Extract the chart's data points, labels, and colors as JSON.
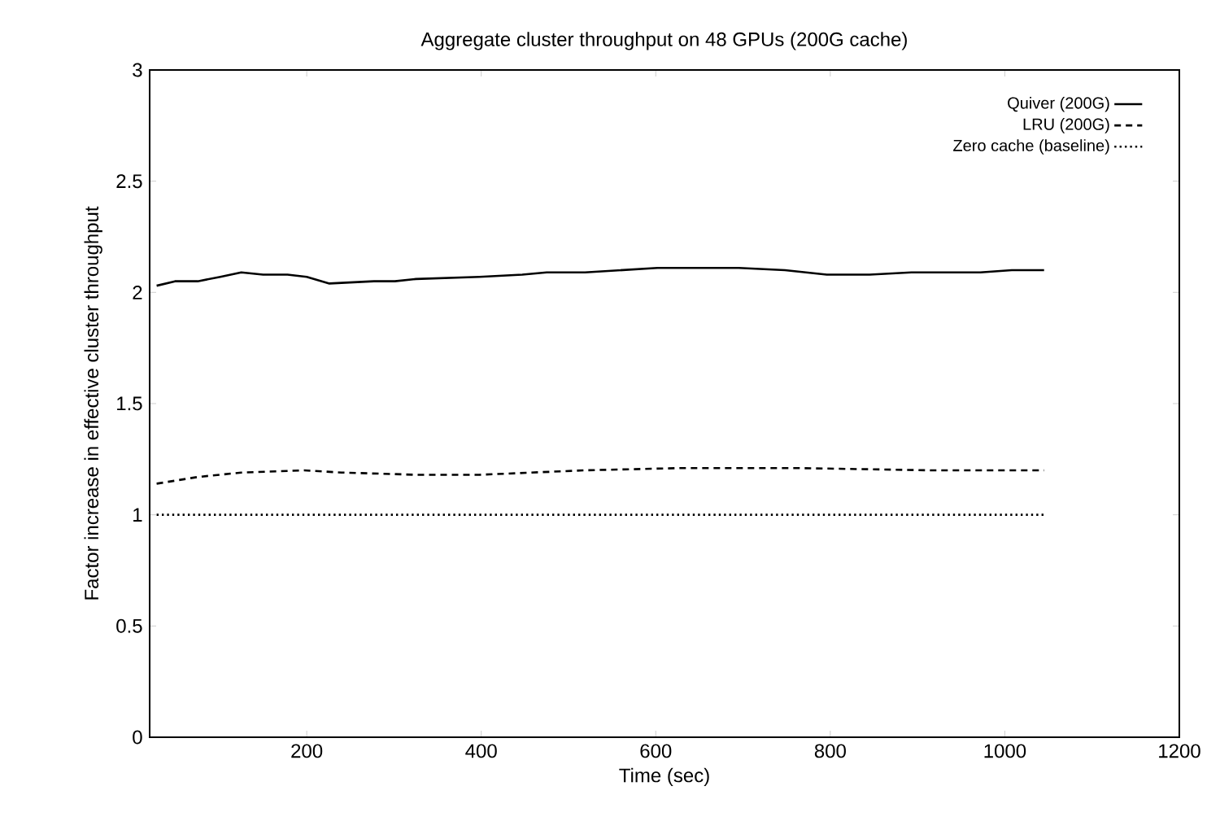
{
  "chart_data": {
    "type": "line",
    "title": "Aggregate cluster throughput on 48 GPUs (200G cache)",
    "xlabel": "Time (sec)",
    "ylabel": "Factor increase in effective cluster throughput",
    "xlim": [
      20,
      1200
    ],
    "ylim": [
      0,
      3
    ],
    "xticks": [
      200,
      400,
      600,
      800,
      1000,
      1200
    ],
    "yticks": [
      0,
      0.5,
      1,
      1.5,
      2,
      2.5,
      3
    ],
    "legend": "top right",
    "grid": false,
    "marker": "none",
    "series": [
      {
        "name": "Quiver (200G)",
        "color": "#000000",
        "line_style": "solid",
        "x": [
          28,
          49,
          75,
          101,
          125,
          150,
          178,
          200,
          226,
          277,
          301,
          325,
          398,
          447,
          475,
          519,
          602,
          695,
          748,
          796,
          845,
          893,
          923,
          972,
          1008,
          1045
        ],
        "values": [
          2.03,
          2.05,
          2.05,
          2.07,
          2.09,
          2.08,
          2.08,
          2.07,
          2.04,
          2.05,
          2.05,
          2.06,
          2.07,
          2.08,
          2.09,
          2.09,
          2.11,
          2.11,
          2.1,
          2.08,
          2.08,
          2.09,
          2.09,
          2.09,
          2.1,
          2.1
        ]
      },
      {
        "name": "LRU (200G)",
        "color": "#000000",
        "line_style": "dashed",
        "x": [
          28,
          75,
          125,
          197,
          240,
          325,
          398,
          519,
          628,
          765,
          915,
          1045
        ],
        "values": [
          1.14,
          1.17,
          1.19,
          1.2,
          1.19,
          1.18,
          1.18,
          1.2,
          1.21,
          1.21,
          1.2,
          1.2
        ]
      },
      {
        "name": "Zero cache (baseline)",
        "color": "#000000",
        "line_style": "dotted",
        "x": [
          28,
          1045
        ],
        "values": [
          1.0,
          1.0
        ]
      }
    ]
  }
}
